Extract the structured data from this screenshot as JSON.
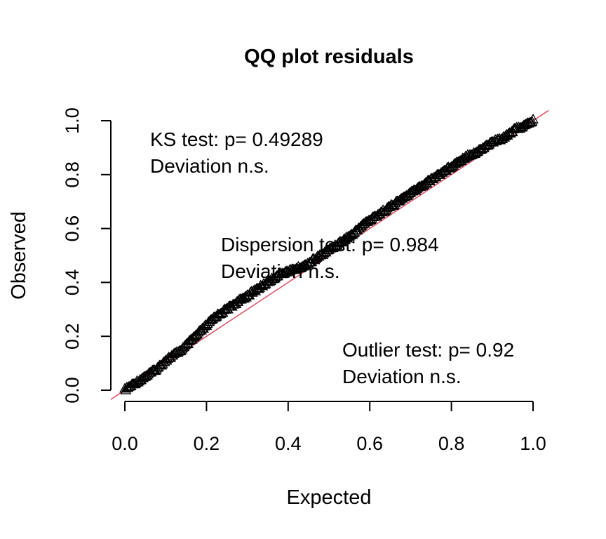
{
  "chart_data": {
    "type": "scatter",
    "title": "QQ plot residuals",
    "xlabel": "Expected",
    "ylabel": "Observed",
    "xlim": [
      0,
      1
    ],
    "ylim": [
      0,
      1
    ],
    "x_ticks": [
      "0.0",
      "0.2",
      "0.4",
      "0.6",
      "0.8",
      "1.0"
    ],
    "y_ticks": [
      "0.0",
      "0.2",
      "0.4",
      "0.6",
      "0.8",
      "1.0"
    ],
    "marker": "open-triangle",
    "point_color": "#000000",
    "reference_line": {
      "type": "identity",
      "color": "#DF536B"
    },
    "qq_points": [
      [
        0.0,
        0.0
      ],
      [
        0.02,
        0.02
      ],
      [
        0.04,
        0.04
      ],
      [
        0.06,
        0.06
      ],
      [
        0.08,
        0.08
      ],
      [
        0.1,
        0.11
      ],
      [
        0.12,
        0.13
      ],
      [
        0.14,
        0.15
      ],
      [
        0.16,
        0.18
      ],
      [
        0.18,
        0.21
      ],
      [
        0.2,
        0.24
      ],
      [
        0.22,
        0.27
      ],
      [
        0.24,
        0.29
      ],
      [
        0.26,
        0.31
      ],
      [
        0.28,
        0.33
      ],
      [
        0.3,
        0.35
      ],
      [
        0.32,
        0.37
      ],
      [
        0.34,
        0.39
      ],
      [
        0.36,
        0.41
      ],
      [
        0.38,
        0.43
      ],
      [
        0.4,
        0.44
      ],
      [
        0.42,
        0.45
      ],
      [
        0.44,
        0.46
      ],
      [
        0.46,
        0.48
      ],
      [
        0.48,
        0.5
      ],
      [
        0.5,
        0.52
      ],
      [
        0.52,
        0.54
      ],
      [
        0.54,
        0.56
      ],
      [
        0.56,
        0.58
      ],
      [
        0.58,
        0.61
      ],
      [
        0.6,
        0.63
      ],
      [
        0.62,
        0.65
      ],
      [
        0.64,
        0.67
      ],
      [
        0.66,
        0.69
      ],
      [
        0.68,
        0.71
      ],
      [
        0.7,
        0.73
      ],
      [
        0.72,
        0.75
      ],
      [
        0.74,
        0.77
      ],
      [
        0.76,
        0.79
      ],
      [
        0.78,
        0.81
      ],
      [
        0.8,
        0.83
      ],
      [
        0.82,
        0.85
      ],
      [
        0.84,
        0.87
      ],
      [
        0.86,
        0.88
      ],
      [
        0.88,
        0.9
      ],
      [
        0.9,
        0.92
      ],
      [
        0.92,
        0.93
      ],
      [
        0.94,
        0.95
      ],
      [
        0.96,
        0.97
      ],
      [
        0.98,
        0.98
      ],
      [
        1.0,
        1.0
      ]
    ],
    "annotations": [
      {
        "lines": [
          "KS test: p= 0.49289",
          "Deviation  n.s."
        ]
      },
      {
        "lines": [
          "Dispersion test: p= 0.984",
          "Deviation  n.s."
        ]
      },
      {
        "lines": [
          "Outlier test: p= 0.92",
          "Deviation  n.s."
        ]
      }
    ]
  }
}
